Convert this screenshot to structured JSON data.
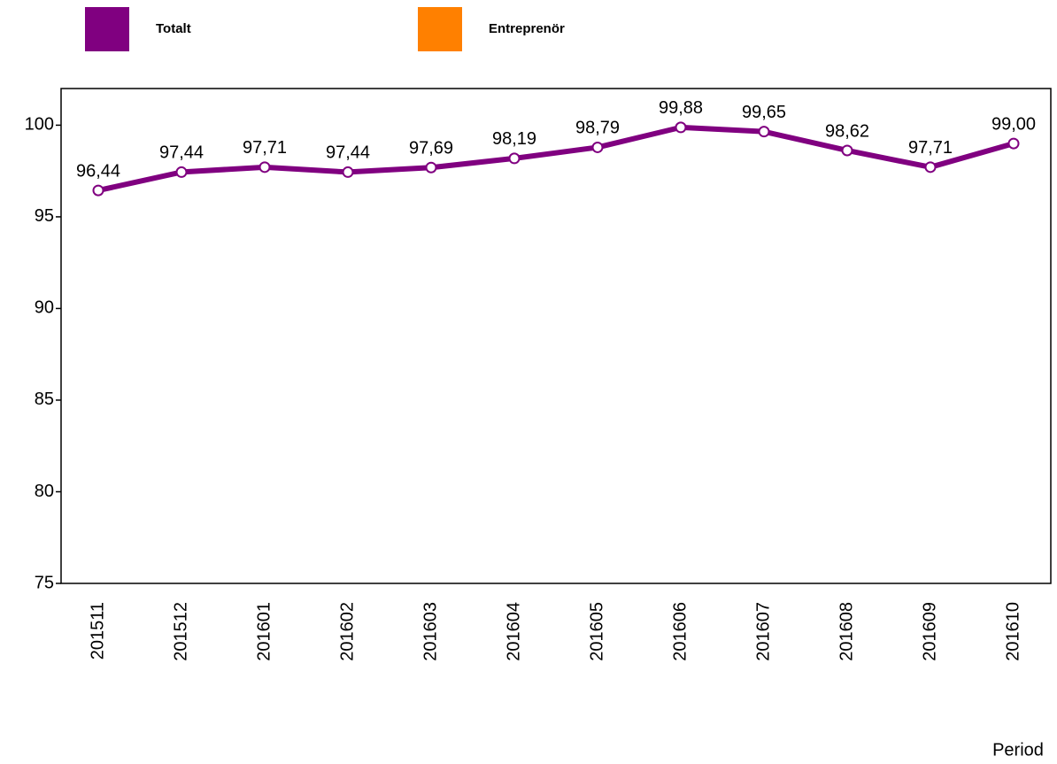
{
  "chart_data": {
    "type": "line",
    "x_label": "Period",
    "categories": [
      "201511",
      "201512",
      "201601",
      "201602",
      "201603",
      "201604",
      "201605",
      "201606",
      "201607",
      "201608",
      "201609",
      "201610"
    ],
    "series": [
      {
        "name": "Totalt",
        "color": "#800080",
        "values": [
          96.44,
          97.44,
          97.71,
          97.44,
          97.69,
          98.19,
          98.79,
          99.88,
          99.65,
          98.62,
          97.71,
          99.0
        ],
        "value_labels": [
          "96,44",
          "97,44",
          "97,71",
          "97,44",
          "97,69",
          "98,19",
          "98,79",
          "99,88",
          "99,65",
          "98,62",
          "97,71",
          "99,00"
        ]
      },
      {
        "name": "Entreprenör",
        "color": "#ff8000",
        "values": [
          null,
          null,
          null,
          null,
          null,
          null,
          null,
          null,
          null,
          null,
          null,
          null
        ]
      }
    ],
    "ylim": [
      75,
      102
    ],
    "yticks": [
      75,
      80,
      85,
      90,
      95,
      100
    ],
    "grid": false,
    "legend": "top"
  }
}
